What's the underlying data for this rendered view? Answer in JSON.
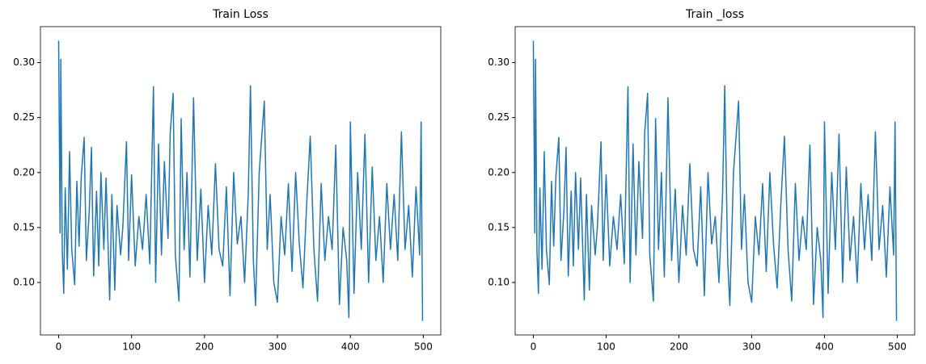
{
  "chart_data": [
    {
      "type": "line",
      "title": "Train Loss",
      "x": [
        0,
        2,
        3,
        5,
        7,
        9,
        12,
        15,
        18,
        22,
        25,
        28,
        31,
        35,
        38,
        42,
        45,
        48,
        52,
        55,
        58,
        62,
        65,
        70,
        73,
        77,
        80,
        85,
        88,
        93,
        96,
        100,
        105,
        110,
        115,
        120,
        125,
        130,
        133,
        137,
        141,
        145,
        150,
        153,
        157,
        160,
        165,
        168,
        172,
        176,
        180,
        185,
        190,
        195,
        200,
        205,
        210,
        215,
        220,
        225,
        230,
        235,
        240,
        245,
        250,
        255,
        260,
        263,
        267,
        270,
        275,
        282,
        286,
        290,
        295,
        300,
        305,
        310,
        315,
        320,
        325,
        330,
        335,
        340,
        345,
        350,
        355,
        360,
        365,
        370,
        375,
        380,
        385,
        390,
        395,
        398,
        400,
        405,
        410,
        415,
        420,
        425,
        430,
        435,
        440,
        445,
        450,
        455,
        460,
        465,
        470,
        475,
        480,
        485,
        490,
        495,
        497,
        499
      ],
      "series": [
        {
          "name": "Train Loss",
          "color": "#1f77b4",
          "values": [
            0.32,
            0.145,
            0.303,
            0.128,
            0.09,
            0.186,
            0.112,
            0.219,
            0.13,
            0.098,
            0.192,
            0.133,
            0.196,
            0.232,
            0.12,
            0.165,
            0.223,
            0.106,
            0.183,
            0.115,
            0.2,
            0.13,
            0.195,
            0.084,
            0.18,
            0.093,
            0.17,
            0.125,
            0.15,
            0.228,
            0.12,
            0.198,
            0.115,
            0.16,
            0.13,
            0.18,
            0.117,
            0.278,
            0.1,
            0.226,
            0.125,
            0.21,
            0.14,
            0.236,
            0.272,
            0.125,
            0.083,
            0.249,
            0.13,
            0.2,
            0.105,
            0.268,
            0.12,
            0.185,
            0.1,
            0.17,
            0.125,
            0.208,
            0.13,
            0.115,
            0.187,
            0.088,
            0.2,
            0.135,
            0.16,
            0.1,
            0.18,
            0.279,
            0.12,
            0.079,
            0.2,
            0.265,
            0.13,
            0.18,
            0.1,
            0.082,
            0.16,
            0.125,
            0.19,
            0.11,
            0.2,
            0.135,
            0.095,
            0.17,
            0.233,
            0.13,
            0.083,
            0.19,
            0.12,
            0.16,
            0.13,
            0.225,
            0.08,
            0.15,
            0.12,
            0.068,
            0.246,
            0.09,
            0.2,
            0.13,
            0.235,
            0.1,
            0.205,
            0.12,
            0.16,
            0.1,
            0.19,
            0.13,
            0.18,
            0.12,
            0.237,
            0.13,
            0.17,
            0.105,
            0.187,
            0.125,
            0.246,
            0.065
          ]
        }
      ],
      "xlim": [
        -24.95,
        523.95
      ],
      "xticks": [
        0,
        100,
        200,
        300,
        400,
        500
      ],
      "ylim": [
        0.05225,
        0.33275
      ],
      "yticks": [
        {
          "value": 0.1,
          "label": "0.10"
        },
        {
          "value": 0.15,
          "label": "0.15"
        },
        {
          "value": 0.2,
          "label": "0.20"
        },
        {
          "value": 0.25,
          "label": "0.25"
        },
        {
          "value": 0.3,
          "label": "0.30"
        }
      ]
    },
    {
      "type": "line",
      "title": "Train _loss",
      "x": [
        0,
        2,
        3,
        5,
        7,
        9,
        12,
        15,
        18,
        22,
        25,
        28,
        31,
        35,
        38,
        42,
        45,
        48,
        52,
        55,
        58,
        62,
        65,
        70,
        73,
        77,
        80,
        85,
        88,
        93,
        96,
        100,
        105,
        110,
        115,
        120,
        125,
        130,
        133,
        137,
        141,
        145,
        150,
        153,
        157,
        160,
        165,
        168,
        172,
        176,
        180,
        185,
        190,
        195,
        200,
        205,
        210,
        215,
        220,
        225,
        230,
        235,
        240,
        245,
        250,
        255,
        260,
        263,
        267,
        270,
        275,
        282,
        286,
        290,
        295,
        300,
        305,
        310,
        315,
        320,
        325,
        330,
        335,
        340,
        345,
        350,
        355,
        360,
        365,
        370,
        375,
        380,
        385,
        390,
        395,
        398,
        400,
        405,
        410,
        415,
        420,
        425,
        430,
        435,
        440,
        445,
        450,
        455,
        460,
        465,
        470,
        475,
        480,
        485,
        490,
        495,
        497,
        499
      ],
      "series": [
        {
          "name": "Train _loss",
          "color": "#1f77b4",
          "values": [
            0.32,
            0.145,
            0.303,
            0.128,
            0.09,
            0.186,
            0.112,
            0.219,
            0.13,
            0.098,
            0.192,
            0.133,
            0.196,
            0.232,
            0.12,
            0.165,
            0.223,
            0.106,
            0.183,
            0.115,
            0.2,
            0.13,
            0.195,
            0.084,
            0.18,
            0.093,
            0.17,
            0.125,
            0.15,
            0.228,
            0.12,
            0.198,
            0.115,
            0.16,
            0.13,
            0.18,
            0.117,
            0.278,
            0.1,
            0.226,
            0.125,
            0.21,
            0.14,
            0.236,
            0.272,
            0.125,
            0.083,
            0.249,
            0.13,
            0.2,
            0.105,
            0.268,
            0.12,
            0.185,
            0.1,
            0.17,
            0.125,
            0.208,
            0.13,
            0.115,
            0.187,
            0.088,
            0.2,
            0.135,
            0.16,
            0.1,
            0.18,
            0.279,
            0.12,
            0.079,
            0.2,
            0.265,
            0.13,
            0.18,
            0.1,
            0.082,
            0.16,
            0.125,
            0.19,
            0.11,
            0.2,
            0.135,
            0.095,
            0.17,
            0.233,
            0.13,
            0.083,
            0.19,
            0.12,
            0.16,
            0.13,
            0.225,
            0.08,
            0.15,
            0.12,
            0.068,
            0.246,
            0.09,
            0.2,
            0.13,
            0.235,
            0.1,
            0.205,
            0.12,
            0.16,
            0.1,
            0.19,
            0.13,
            0.18,
            0.12,
            0.237,
            0.13,
            0.17,
            0.105,
            0.187,
            0.125,
            0.246,
            0.065
          ]
        }
      ],
      "xlim": [
        -24.95,
        523.95
      ],
      "xticks": [
        0,
        100,
        200,
        300,
        400,
        500
      ],
      "ylim": [
        0.05225,
        0.33275
      ],
      "yticks": [
        {
          "value": 0.1,
          "label": "0.10"
        },
        {
          "value": 0.15,
          "label": "0.15"
        },
        {
          "value": 0.2,
          "label": "0.20"
        },
        {
          "value": 0.25,
          "label": "0.25"
        },
        {
          "value": 0.3,
          "label": "0.30"
        }
      ]
    }
  ]
}
